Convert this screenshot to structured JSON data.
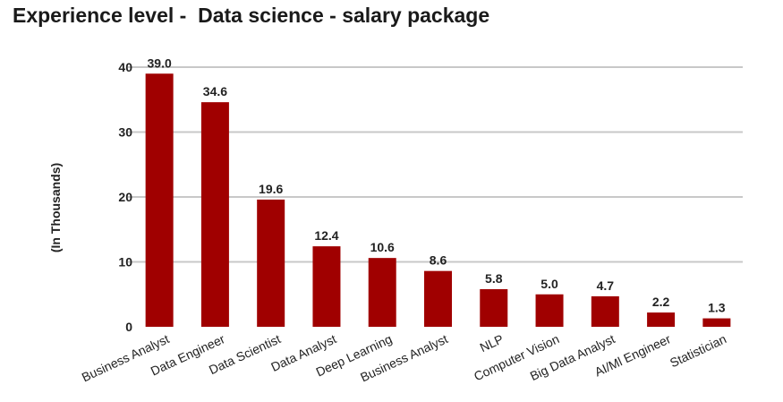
{
  "chart_data": {
    "type": "bar",
    "title": "Experience level -  Data science - salary package",
    "ylabel": "(In Thousands)",
    "xlabel": "",
    "ylim": [
      0,
      40
    ],
    "yticks": [
      0,
      10,
      20,
      30,
      40
    ],
    "grid": true,
    "categories": [
      "Business Analyst",
      "Data Engineer",
      "Data Scientist",
      "Data Analyst",
      "Deep Learning",
      "Business Analyst",
      "NLP",
      "Computer Vision",
      "Big Data Analyst",
      "AI/Ml Engineer",
      "Statistician"
    ],
    "values": [
      39.0,
      34.6,
      19.6,
      12.4,
      10.6,
      8.6,
      5.8,
      5.0,
      4.7,
      2.2,
      1.3
    ],
    "value_labels": [
      "39.0",
      "34.6",
      "19.6",
      "12.4",
      "10.6",
      "8.6",
      "5.8",
      "5.0",
      "4.7",
      "2.2",
      "1.3"
    ],
    "bar_color": "#a00000",
    "grid_color": "#c8c8c8"
  }
}
